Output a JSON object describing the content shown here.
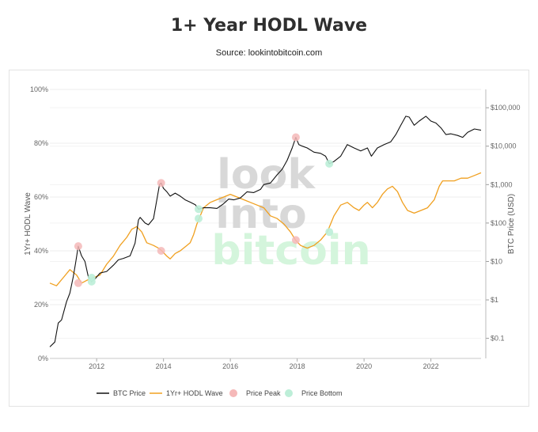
{
  "header": {
    "title": "1+ Year HODL Wave",
    "subtitle": "Source: lookintobitcoin.com"
  },
  "watermark": {
    "line1": "look",
    "line2": "into",
    "line3": "bitcoin"
  },
  "colors": {
    "btc": "#111111",
    "hodl": "#f0a020",
    "peak": "#f5b8b8",
    "bottom": "#bdeed8",
    "grid": "#ececec",
    "watermark_grey": "#d8d8d8",
    "watermark_green": "#d4f5dc"
  },
  "chart_data": {
    "type": "line",
    "title": "1+ Year HODL Wave",
    "subtitle": "Source: lookintobitcoin.com",
    "x_ticks": [
      "2012",
      "2014",
      "2016",
      "2018",
      "2020",
      "2022"
    ],
    "xlim": [
      2010.6,
      2023.5
    ],
    "left_axis": {
      "label": "1Yr+ HODL Wave",
      "ticks": [
        "0%",
        "20%",
        "40%",
        "60%",
        "80%",
        "100%"
      ],
      "range": [
        0,
        100
      ]
    },
    "right_axis": {
      "label": "BTC Price (USD)",
      "scale": "log",
      "ticks": [
        "$0.1",
        "$1",
        "$10",
        "$100",
        "$1,000",
        "$10,000",
        "$100,000"
      ],
      "range": [
        0.03,
        300000
      ]
    },
    "legend": {
      "placement": "bottom-center",
      "items": [
        "BTC Price",
        "1Yr+ HODL Wave",
        "Price Peak",
        "Price Bottom"
      ]
    },
    "series": [
      {
        "name": "BTC Price",
        "axis": "right",
        "x": [
          2010.6,
          2010.75,
          2010.85,
          2010.95,
          2011.1,
          2011.2,
          2011.3,
          2011.37,
          2011.45,
          2011.55,
          2011.65,
          2011.75,
          2011.85,
          2011.95,
          2012.1,
          2012.3,
          2012.5,
          2012.65,
          2012.8,
          2013.0,
          2013.15,
          2013.25,
          2013.3,
          2013.45,
          2013.55,
          2013.7,
          2013.8,
          2013.88,
          2013.93,
          2014.0,
          2014.1,
          2014.2,
          2014.35,
          2014.5,
          2014.65,
          2014.8,
          2014.95,
          2015.05,
          2015.2,
          2015.4,
          2015.6,
          2015.8,
          2015.95,
          2016.1,
          2016.3,
          2016.5,
          2016.7,
          2016.9,
          2017.0,
          2017.2,
          2017.4,
          2017.55,
          2017.7,
          2017.85,
          2017.96,
          2018.05,
          2018.15,
          2018.3,
          2018.5,
          2018.7,
          2018.85,
          2018.96,
          2019.1,
          2019.3,
          2019.5,
          2019.7,
          2019.9,
          2020.1,
          2020.22,
          2020.4,
          2020.6,
          2020.8,
          2020.95,
          2021.1,
          2021.25,
          2021.35,
          2021.5,
          2021.65,
          2021.85,
          2022.0,
          2022.15,
          2022.3,
          2022.45,
          2022.6,
          2022.8,
          2022.95,
          2023.1,
          2023.3,
          2023.5
        ],
        "y": [
          0.06,
          0.08,
          0.25,
          0.3,
          0.9,
          1.5,
          4,
          9,
          25,
          14,
          10,
          4,
          3,
          3.5,
          5,
          5.5,
          8,
          11,
          12,
          14,
          30,
          120,
          140,
          100,
          90,
          130,
          400,
          1000,
          1100,
          800,
          650,
          500,
          600,
          500,
          400,
          350,
          300,
          230,
          250,
          250,
          240,
          320,
          420,
          400,
          450,
          650,
          620,
          750,
          1000,
          1100,
          1800,
          2500,
          4300,
          9000,
          17000,
          11000,
          10000,
          9000,
          7000,
          6500,
          5500,
          3500,
          4000,
          5500,
          11000,
          9000,
          7500,
          9000,
          5500,
          9000,
          11000,
          13000,
          20000,
          35000,
          60000,
          57000,
          35000,
          45000,
          60000,
          45000,
          40000,
          30000,
          20000,
          21000,
          19000,
          17000,
          23000,
          28000,
          26000
        ]
      },
      {
        "name": "1Yr+ HODL Wave",
        "axis": "left",
        "x": [
          2010.6,
          2010.8,
          2011.0,
          2011.2,
          2011.4,
          2011.55,
          2011.7,
          2011.9,
          2012.1,
          2012.3,
          2012.5,
          2012.7,
          2012.9,
          2013.05,
          2013.2,
          2013.35,
          2013.5,
          2013.7,
          2013.85,
          2013.95,
          2014.1,
          2014.2,
          2014.35,
          2014.5,
          2014.7,
          2014.8,
          2014.9,
          2015.0,
          2015.2,
          2015.4,
          2015.6,
          2015.8,
          2016.0,
          2016.2,
          2016.4,
          2016.6,
          2016.8,
          2017.0,
          2017.2,
          2017.4,
          2017.6,
          2017.8,
          2017.95,
          2018.1,
          2018.3,
          2018.5,
          2018.7,
          2018.9,
          2019.1,
          2019.3,
          2019.5,
          2019.7,
          2019.85,
          2020.0,
          2020.1,
          2020.25,
          2020.4,
          2020.55,
          2020.7,
          2020.85,
          2021.0,
          2021.15,
          2021.3,
          2021.5,
          2021.7,
          2021.9,
          2022.1,
          2022.25,
          2022.35,
          2022.5,
          2022.7,
          2022.9,
          2023.1,
          2023.3,
          2023.5
        ],
        "y": [
          28,
          27,
          30,
          33,
          31,
          28,
          29,
          30,
          31,
          35,
          38,
          42,
          45,
          48,
          49,
          47,
          43,
          42,
          41,
          40,
          38,
          37,
          39,
          40,
          42,
          43,
          46,
          50,
          56,
          58,
          59,
          60,
          61,
          60,
          59,
          58,
          57,
          56,
          53,
          52,
          50,
          47,
          44,
          42,
          41,
          42,
          44,
          47,
          53,
          57,
          58,
          56,
          55,
          57,
          58,
          56,
          58,
          61,
          63,
          64,
          62,
          58,
          55,
          54,
          55,
          56,
          59,
          64,
          66,
          66,
          66,
          67,
          67,
          68,
          69
        ]
      },
      {
        "name": "Price Peak",
        "axis": "right",
        "x": [
          2011.45,
          2013.93,
          2017.96
        ],
        "y": [
          25,
          1100,
          17000
        ]
      },
      {
        "name": "Price Bottom",
        "axis": "right",
        "x": [
          2011.85,
          2015.05,
          2018.96
        ],
        "y": [
          3,
          230,
          3500
        ]
      }
    ],
    "marker_fill_left_axis": {
      "description_points": "HODL-wave level at the same dates",
      "peak_hodl": [
        28,
        40,
        44
      ],
      "bottom_hodl": [
        30,
        52,
        47
      ]
    },
    "grid": true
  }
}
